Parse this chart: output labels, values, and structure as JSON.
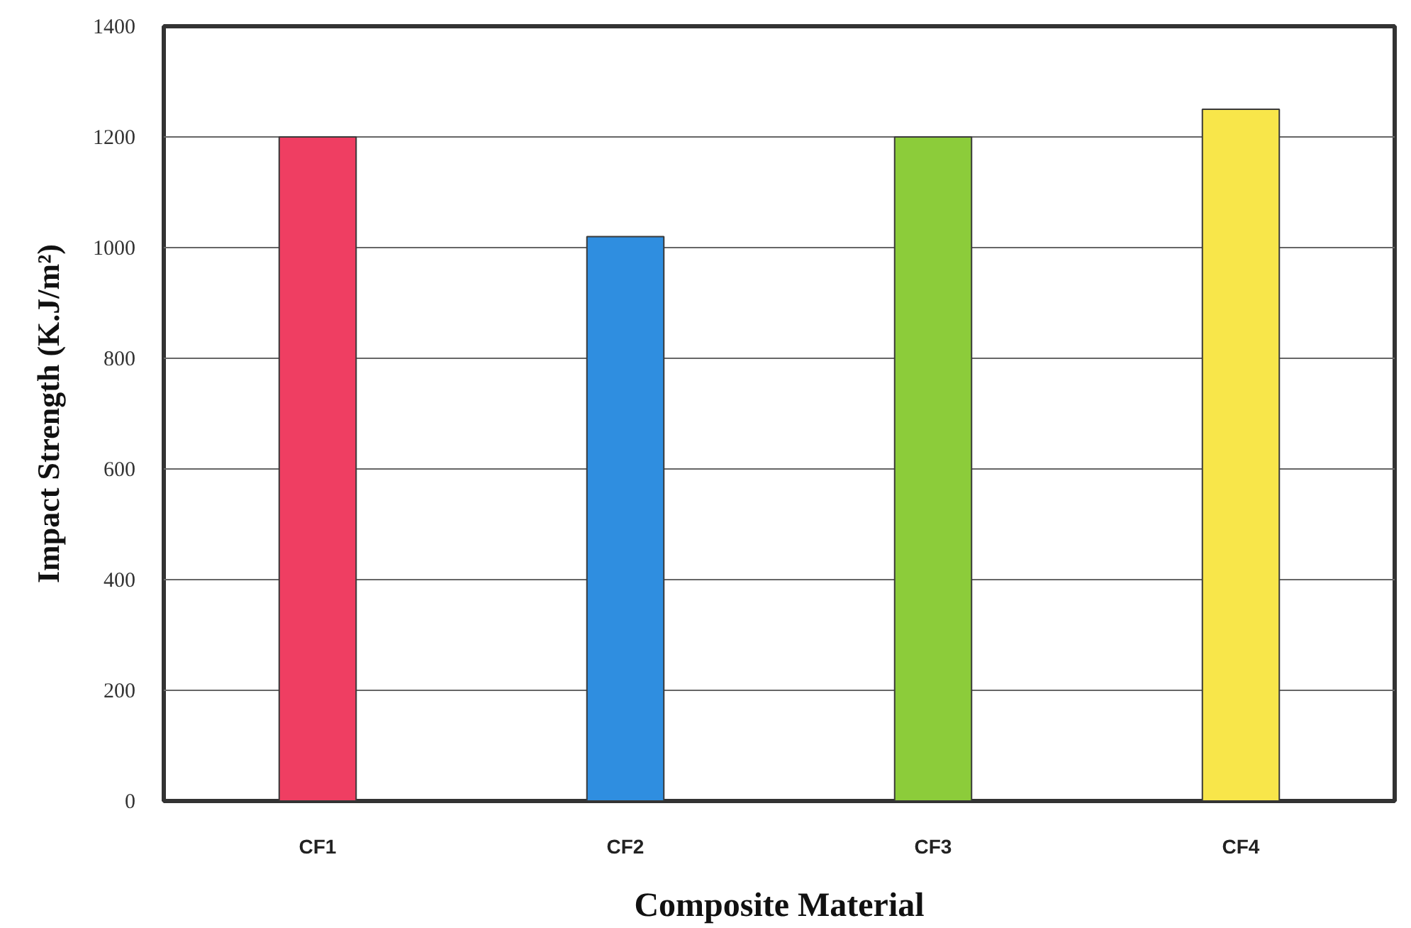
{
  "chart_data": {
    "type": "bar",
    "xlabel": "Composite Material",
    "ylabel": "Impact Strength (K.J/m²)",
    "categories": [
      "CF1",
      "CF2",
      "CF3",
      "CF4"
    ],
    "values": [
      1200,
      1020,
      1200,
      1250
    ],
    "colors": [
      "#ef3e62",
      "#2f8ee0",
      "#8ccc3a",
      "#f8e64a"
    ],
    "ylim": [
      0,
      1400
    ],
    "yticks": [
      0,
      200,
      400,
      600,
      800,
      1000,
      1200,
      1400
    ],
    "grid": "y"
  }
}
